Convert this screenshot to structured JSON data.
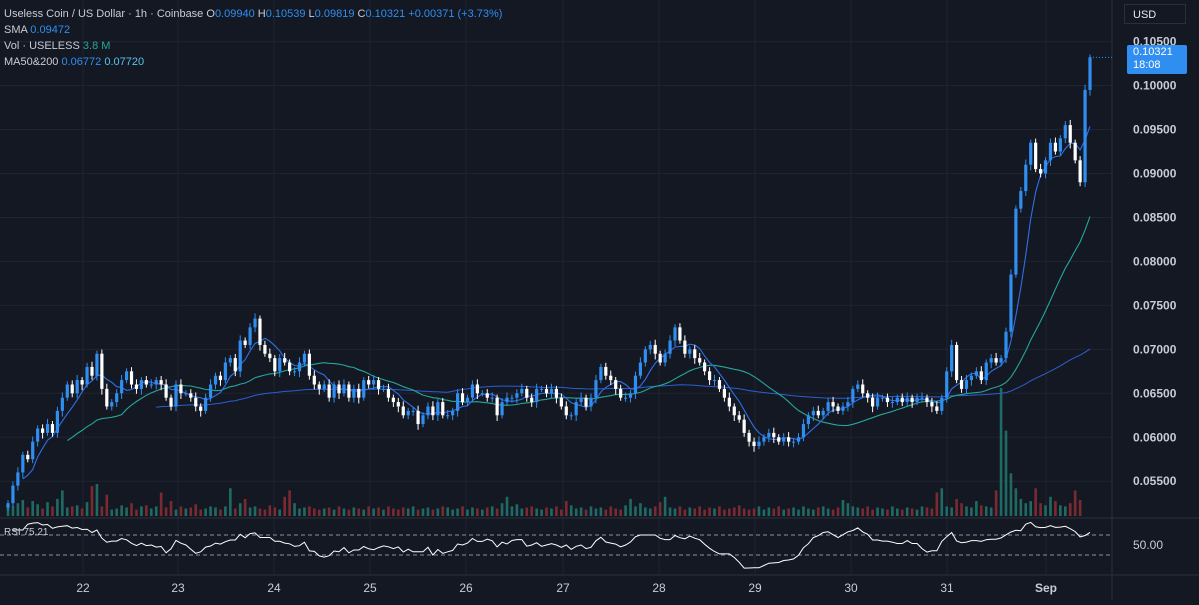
{
  "header": {
    "symbol": "Useless Coin / US Dollar · 1h · Coinbase",
    "o_label": "O",
    "o_value": "0.09940",
    "h_label": "H",
    "h_value": "0.10539",
    "l_label": "L",
    "l_value": "0.09819",
    "c_label": "C",
    "c_value": "0.10321",
    "change": "+0.00371 (+3.73%)"
  },
  "indicators": {
    "sma_label": "SMA",
    "sma_value": "0.09472",
    "vol_label": "Vol · USELESS",
    "vol_value": "3.8 M",
    "ma_label": "MA50&200",
    "ma50_value": "0.06772",
    "ma200_value": "0.07720",
    "rsi_label": "RSI",
    "rsi_value": "75.21"
  },
  "price_scale": {
    "currency": "USD",
    "last_price": "0.10321",
    "countdown": "18:08"
  },
  "colors": {
    "background": "#141823",
    "grid": "#1f2431",
    "up": "#2f8ef0",
    "down": "#ffffff",
    "sma": "#2f6fe8",
    "ma50": "#26a69a",
    "ma200": "#2a5fd0",
    "vol_up": "#1f6b63",
    "vol_down": "#7a2a30",
    "rsi": "#ffffff",
    "axis_text": "#c8ccd6"
  },
  "chart_data": {
    "type": "candlestick",
    "x_labels": [
      "22",
      "23",
      "24",
      "25",
      "26",
      "27",
      "28",
      "29",
      "30",
      "31",
      "Sep"
    ],
    "y_ticks": [
      "0.05500",
      "0.06000",
      "0.06500",
      "0.07000",
      "0.07500",
      "0.08000",
      "0.08500",
      "0.09000",
      "0.09500",
      "0.10000",
      "0.10500"
    ],
    "ylim": [
      0.0515,
      0.107
    ],
    "rsi_ticks": [
      "50.00"
    ],
    "rsi_levels": [
      30,
      70
    ],
    "rsi_range": [
      0,
      100
    ],
    "closes": [
      0.0525,
      0.0545,
      0.056,
      0.058,
      0.0575,
      0.0595,
      0.061,
      0.0605,
      0.0615,
      0.0605,
      0.063,
      0.0645,
      0.066,
      0.065,
      0.0665,
      0.066,
      0.068,
      0.067,
      0.0695,
      0.0655,
      0.0635,
      0.064,
      0.065,
      0.0665,
      0.0675,
      0.066,
      0.0655,
      0.0665,
      0.066,
      0.066,
      0.0665,
      0.066,
      0.0645,
      0.0635,
      0.066,
      0.065,
      0.065,
      0.0645,
      0.0635,
      0.063,
      0.0645,
      0.066,
      0.067,
      0.0665,
      0.0685,
      0.069,
      0.0675,
      0.071,
      0.0705,
      0.0725,
      0.0735,
      0.0705,
      0.0695,
      0.069,
      0.0675,
      0.069,
      0.0685,
      0.0675,
      0.0675,
      0.0685,
      0.0695,
      0.067,
      0.066,
      0.0655,
      0.066,
      0.0645,
      0.066,
      0.065,
      0.066,
      0.0645,
      0.0655,
      0.0645,
      0.0665,
      0.066,
      0.0665,
      0.0655,
      0.0655,
      0.0645,
      0.064,
      0.0635,
      0.0625,
      0.063,
      0.063,
      0.0615,
      0.0625,
      0.0635,
      0.0625,
      0.064,
      0.0625,
      0.0625,
      0.063,
      0.065,
      0.064,
      0.0645,
      0.066,
      0.065,
      0.065,
      0.0645,
      0.0645,
      0.0625,
      0.064,
      0.0645,
      0.0645,
      0.065,
      0.0655,
      0.0645,
      0.064,
      0.0655,
      0.0655,
      0.065,
      0.0655,
      0.0645,
      0.0635,
      0.0625,
      0.0625,
      0.064,
      0.0645,
      0.0635,
      0.0645,
      0.0665,
      0.068,
      0.067,
      0.0665,
      0.0655,
      0.0645,
      0.0645,
      0.065,
      0.067,
      0.0685,
      0.07,
      0.0705,
      0.0695,
      0.0685,
      0.0695,
      0.071,
      0.0725,
      0.071,
      0.0695,
      0.07,
      0.069,
      0.0685,
      0.0675,
      0.0665,
      0.0665,
      0.0655,
      0.0645,
      0.0635,
      0.0625,
      0.062,
      0.0605,
      0.0595,
      0.059,
      0.0595,
      0.06,
      0.0605,
      0.06,
      0.0595,
      0.06,
      0.0595,
      0.0595,
      0.06,
      0.0615,
      0.0625,
      0.063,
      0.0625,
      0.063,
      0.064,
      0.0635,
      0.063,
      0.0635,
      0.064,
      0.0655,
      0.066,
      0.065,
      0.0645,
      0.0635,
      0.0645,
      0.0645,
      0.064,
      0.064,
      0.0645,
      0.064,
      0.0645,
      0.064,
      0.0645,
      0.0645,
      0.064,
      0.0635,
      0.063,
      0.0645,
      0.0675,
      0.0705,
      0.0665,
      0.0655,
      0.0665,
      0.067,
      0.0675,
      0.0665,
      0.0685,
      0.069,
      0.0685,
      0.069,
      0.072,
      0.0785,
      0.086,
      0.088,
      0.091,
      0.0935,
      0.0905,
      0.09,
      0.0915,
      0.0935,
      0.0925,
      0.094,
      0.0955,
      0.0935,
      0.0915,
      0.089,
      0.0995,
      0.1032
    ],
    "volumes": [
      1.0,
      0.9,
      1.2,
      1.5,
      0.8,
      1.4,
      1.1,
      0.7,
      1.3,
      0.9,
      1.6,
      2.4,
      0.8,
      0.9,
      1.0,
      0.7,
      1.3,
      2.8,
      3.0,
      0.9,
      2.0,
      0.6,
      0.7,
      1.0,
      0.8,
      1.2,
      0.6,
      0.9,
      1.0,
      0.7,
      0.9,
      2.2,
      0.8,
      1.4,
      0.6,
      0.9,
      0.7,
      0.8,
      1.1,
      0.6,
      0.7,
      0.9,
      0.8,
      0.6,
      0.9,
      2.6,
      0.7,
      1.2,
      1.6,
      0.8,
      0.9,
      0.7,
      0.6,
      1.0,
      0.8,
      0.6,
      1.8,
      2.4,
      1.2,
      0.7,
      0.8,
      0.9,
      0.7,
      0.6,
      0.7,
      0.8,
      0.6,
      0.9,
      0.7,
      0.6,
      0.8,
      0.7,
      0.6,
      0.9,
      0.7,
      0.8,
      0.6,
      0.9,
      0.7,
      0.6,
      0.8,
      0.7,
      0.9,
      0.6,
      0.7,
      0.8,
      0.6,
      0.7,
      0.9,
      0.8,
      0.6,
      0.7,
      0.9,
      0.6,
      0.8,
      0.7,
      0.6,
      0.8,
      0.9,
      0.7,
      1.2,
      1.8,
      0.9,
      1.1,
      0.7,
      0.8,
      0.9,
      0.7,
      0.6,
      0.8,
      0.7,
      0.9,
      0.6,
      1.4,
      1.0,
      0.7,
      0.8,
      0.6,
      0.9,
      0.7,
      0.8,
      0.6,
      0.9,
      0.7,
      0.6,
      1.0,
      1.6,
      0.9,
      1.2,
      0.8,
      0.7,
      0.9,
      1.3,
      1.8,
      0.8,
      0.7,
      0.9,
      0.6,
      0.8,
      0.7,
      0.9,
      0.6,
      0.8,
      0.7,
      0.9,
      0.6,
      0.7,
      0.8,
      1.0,
      0.7,
      0.6,
      0.7,
      0.9,
      0.6,
      0.8,
      0.7,
      0.9,
      0.6,
      0.7,
      0.8,
      0.6,
      0.9,
      0.7,
      0.6,
      0.8,
      0.9,
      0.7,
      0.6,
      0.8,
      1.5,
      1.2,
      0.9,
      0.8,
      0.7,
      0.9,
      0.6,
      0.8,
      0.7,
      0.6,
      0.9,
      0.7,
      0.6,
      0.8,
      0.7,
      0.6,
      0.9,
      0.8,
      0.7,
      2.2,
      2.6,
      0.9,
      0.8,
      1.6,
      1.2,
      0.9,
      0.8,
      1.4,
      1.0,
      0.9,
      0.8,
      2.4,
      12.0,
      8.0,
      4.0,
      2.6,
      1.6,
      1.2,
      1.4,
      2.6,
      1.2,
      1.0,
      1.8,
      1.4,
      1.0,
      0.9,
      1.2,
      2.4,
      1.5
    ],
    "sma_last": 0.09472,
    "ma50_last": 0.06772,
    "ma200_last": 0.0772,
    "rsi_last": 75.21
  }
}
